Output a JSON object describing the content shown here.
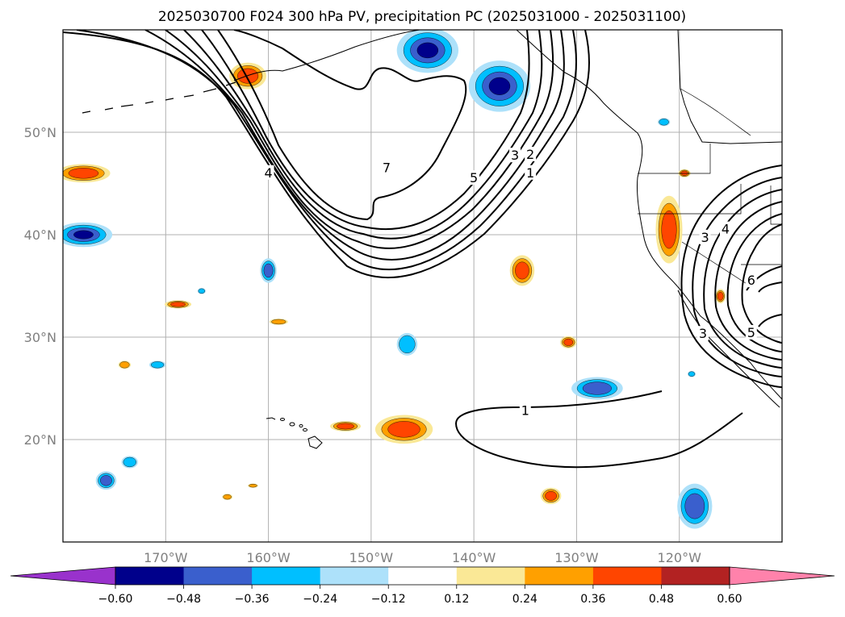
{
  "chart_data": {
    "type": "map",
    "title": "2025030700 F024 300 hPa PV, precipitation PC (2025031000 - 2025031100)",
    "extent": {
      "lon_min": -180,
      "lon_max": -110,
      "lat_min": 10,
      "lat_max": 60
    },
    "lon_ticks": [
      {
        "value": -170,
        "label": "170°W"
      },
      {
        "value": -160,
        "label": "160°W"
      },
      {
        "value": -150,
        "label": "150°W"
      },
      {
        "value": -140,
        "label": "140°W"
      },
      {
        "value": -130,
        "label": "130°W"
      },
      {
        "value": -120,
        "label": "120°W"
      }
    ],
    "lat_ticks": [
      {
        "value": 20,
        "label": "20°N"
      },
      {
        "value": 30,
        "label": "30°N"
      },
      {
        "value": 40,
        "label": "40°N"
      },
      {
        "value": 50,
        "label": "50°N"
      }
    ],
    "grid": true,
    "colorbar": {
      "extend": "both",
      "bounds": [
        -0.6,
        -0.48,
        -0.36,
        -0.24,
        -0.12,
        0.12,
        0.24,
        0.36,
        0.48,
        0.6
      ],
      "labels": [
        "−0.60",
        "−0.48",
        "−0.36",
        "−0.24",
        "−0.12",
        "0.12",
        "0.24",
        "0.36",
        "0.48",
        "0.60"
      ],
      "colors": [
        "#9932CC",
        "#00008B",
        "#3A5FCD",
        "#00BFFF",
        "#ADE1FA",
        "#FFFFFF",
        "#FAE896",
        "#FFA000",
        "#FF4500",
        "#B22222",
        "#FF82AB"
      ]
    },
    "pv_contour_labels": [
      {
        "text": "7",
        "lon": -148.5,
        "lat": 46.5
      },
      {
        "text": "4",
        "lon": -160.0,
        "lat": 46.0
      },
      {
        "text": "5",
        "lon": -140.0,
        "lat": 45.5
      },
      {
        "text": "3",
        "lon": -136.0,
        "lat": 47.7
      },
      {
        "text": "2",
        "lon": -134.5,
        "lat": 47.8
      },
      {
        "text": "1",
        "lon": -134.5,
        "lat": 46.0
      },
      {
        "text": "1",
        "lon": -135.0,
        "lat": 22.8
      },
      {
        "text": "3",
        "lon": -117.5,
        "lat": 39.7
      },
      {
        "text": "4",
        "lon": -115.5,
        "lat": 40.5
      },
      {
        "text": "6",
        "lon": -113.0,
        "lat": 35.5
      },
      {
        "text": "5",
        "lon": -113.0,
        "lat": 30.4
      },
      {
        "text": "3",
        "lon": -117.7,
        "lat": 30.3
      }
    ],
    "precip_anomalies": [
      {
        "lon": -144.5,
        "lat": 58.0,
        "rx": 3.0,
        "ry": 2.2,
        "value": -0.55
      },
      {
        "lon": -137.5,
        "lat": 54.5,
        "rx": 3.0,
        "ry": 2.5,
        "value": -0.55
      },
      {
        "lon": -162.0,
        "lat": 55.5,
        "rx": 1.8,
        "ry": 1.3,
        "value": 0.45
      },
      {
        "lon": -178.0,
        "lat": 46.0,
        "rx": 2.6,
        "ry": 0.9,
        "value": 0.47
      },
      {
        "lon": -178.0,
        "lat": 40.0,
        "rx": 2.8,
        "ry": 1.2,
        "value": -0.5
      },
      {
        "lon": -160.0,
        "lat": 36.5,
        "rx": 0.8,
        "ry": 1.2,
        "value": -0.4
      },
      {
        "lon": -168.8,
        "lat": 33.2,
        "rx": 1.3,
        "ry": 0.4,
        "value": 0.4
      },
      {
        "lon": -159.0,
        "lat": 31.5,
        "rx": 0.9,
        "ry": 0.3,
        "value": 0.3
      },
      {
        "lon": -146.5,
        "lat": 29.3,
        "rx": 1.0,
        "ry": 1.1,
        "value": -0.35
      },
      {
        "lon": -135.3,
        "lat": 36.5,
        "rx": 1.2,
        "ry": 1.5,
        "value": 0.4
      },
      {
        "lon": -130.8,
        "lat": 29.5,
        "rx": 0.8,
        "ry": 0.6,
        "value": 0.4
      },
      {
        "lon": -128.0,
        "lat": 25.0,
        "rx": 2.5,
        "ry": 1.1,
        "value": -0.4
      },
      {
        "lon": -146.8,
        "lat": 21.0,
        "rx": 2.8,
        "ry": 1.4,
        "value": 0.4
      },
      {
        "lon": -152.5,
        "lat": 21.3,
        "rx": 1.5,
        "ry": 0.5,
        "value": 0.4
      },
      {
        "lon": -132.5,
        "lat": 14.5,
        "rx": 1.0,
        "ry": 0.8,
        "value": 0.4
      },
      {
        "lon": -118.5,
        "lat": 13.5,
        "rx": 1.7,
        "ry": 2.2,
        "value": -0.45
      },
      {
        "lon": -121.0,
        "lat": 40.5,
        "rx": 1.3,
        "ry": 3.3,
        "value": 0.45
      },
      {
        "lon": -119.5,
        "lat": 46.0,
        "rx": 0.6,
        "ry": 0.4,
        "value": 0.4
      },
      {
        "lon": -174.0,
        "lat": 27.3,
        "rx": 0.6,
        "ry": 0.4,
        "value": 0.35
      },
      {
        "lon": -170.8,
        "lat": 27.3,
        "rx": 0.8,
        "ry": 0.4,
        "value": -0.25
      },
      {
        "lon": -173.5,
        "lat": 17.8,
        "rx": 0.8,
        "ry": 0.6,
        "value": -0.35
      },
      {
        "lon": -175.8,
        "lat": 16.0,
        "rx": 1.0,
        "ry": 0.9,
        "value": -0.4
      },
      {
        "lon": -161.5,
        "lat": 15.5,
        "rx": 0.5,
        "ry": 0.2,
        "value": 0.3
      },
      {
        "lon": -164.0,
        "lat": 14.4,
        "rx": 0.5,
        "ry": 0.3,
        "value": 0.3
      },
      {
        "lon": -121.5,
        "lat": 51.0,
        "rx": 0.6,
        "ry": 0.4,
        "value": -0.35
      },
      {
        "lon": -118.8,
        "lat": 26.4,
        "rx": 0.4,
        "ry": 0.3,
        "value": -0.25
      },
      {
        "lon": -116.0,
        "lat": 34.0,
        "rx": 0.5,
        "ry": 0.7,
        "value": 0.45
      },
      {
        "lon": -166.5,
        "lat": 34.5,
        "rx": 0.4,
        "ry": 0.3,
        "value": -0.25
      }
    ]
  }
}
